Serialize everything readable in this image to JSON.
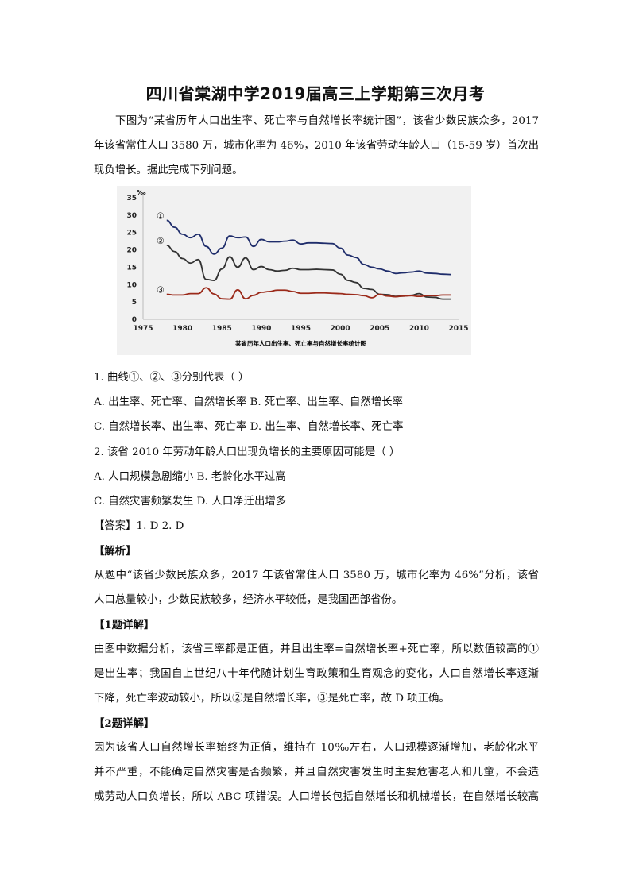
{
  "title": "四川省棠湖中学2019届高三上学期第三次月考",
  "intro": [
    "下图为“某省历年人口出生率、死亡率与自然增长率统计图”，该省少数民族众多，2017",
    "年该省常住人口 3580 万，城市化率为 46%，2010 年该省劳动年龄人口（15-59 岁）首次出",
    "现负增长。据此完成下列问题。"
  ],
  "q1": {
    "stem": "1. 曲线①、②、③分别代表（     ）",
    "options": [
      "A. 出生率、死亡率、自然增长率      B. 死亡率、出生率、自然增长率",
      "C. 自然增长率、出生率、死亡率      D. 出生率、自然增长率、死亡率"
    ]
  },
  "q2": {
    "stem": "2. 该省 2010 年劳动年龄人口出现负增长的主要原因可能是（     ）",
    "options": [
      "A. 人口规模急剧缩小      B. 老龄化水平过高",
      "C. 自然灾害频繁发生      D. 人口净迁出增多"
    ]
  },
  "answer": "【答案】1. D     2. D",
  "analysis_heading": "【解析】",
  "analysis": [
    "从题中“该省少数民族众多，2017 年该省常住人口 3580 万，城市化率为 46%”分析，该省",
    "人口总量较小，少数民族较多，经济水平较低，是我国西部省份。"
  ],
  "d1_heading": "【1题详解】",
  "d1": [
    "由图中数据分析，该省三率都是正值，并且出生率=自然增长率+死亡率，所以数值较高的①",
    "是出生率；我国自上世纪八十年代随计划生育政策和生育观念的变化，人口自然增长率逐渐",
    "下降，死亡率波动较小，所以②是自然增长率，③是死亡率，故 D 项正确。"
  ],
  "d2_heading": "【2题详解】",
  "d2": [
    "因为该省人口自然增长率始终为正值，维持在 10‰左右，人口规模逐渐增加，老龄化水平",
    "并不严重，不能确定自然灾害是否频繁，并且自然灾害发生时主要危害老人和儿童，不会造",
    "成劳动人口负增长，所以 ABC 项错误。人口增长包括自然增长和机械增长，在自然增长较高"
  ],
  "chart_data": {
    "type": "line",
    "title": "某省历年人口出生率、死亡率与自然增长率统计图",
    "ylabel": "‰",
    "xlim": [
      1975,
      2015
    ],
    "ylim": [
      0,
      35
    ],
    "xticks": [
      "1975",
      "1980",
      "1985",
      "1990",
      "1995",
      "2000",
      "2005",
      "2010",
      "2015"
    ],
    "yticks": [
      "0",
      "5",
      "10",
      "15",
      "20",
      "25",
      "30",
      "35"
    ],
    "grid": false,
    "x": [
      1978,
      1979,
      1980,
      1981,
      1982,
      1983,
      1984,
      1985,
      1986,
      1987,
      1988,
      1989,
      1990,
      1991,
      1992,
      1993,
      1994,
      1995,
      1996,
      1997,
      1998,
      1999,
      2000,
      2001,
      2002,
      2003,
      2004,
      2005,
      2006,
      2007,
      2008,
      2009,
      2010,
      2011,
      2012,
      2013,
      2014
    ],
    "series": [
      {
        "name": "①",
        "color": "#1f2d6b",
        "values": [
          28.5,
          26.5,
          24.5,
          23.5,
          24.5,
          21,
          18.8,
          20.5,
          24,
          23.5,
          23.7,
          21,
          23,
          22.3,
          22.3,
          22.5,
          22.8,
          21.7,
          22,
          22,
          21.9,
          21.8,
          20.5,
          18.5,
          17.8,
          15.8,
          15,
          14.5,
          13.9,
          13.2,
          13.4,
          13.6,
          13.9,
          13.3,
          13.2,
          13,
          12.9
        ]
      },
      {
        "name": "②",
        "color": "#333333",
        "values": [
          21.3,
          19.5,
          17.5,
          16.2,
          17.2,
          11.5,
          11.2,
          14.5,
          18,
          15,
          17.7,
          14.3,
          15.2,
          14.3,
          13.9,
          14.1,
          14.7,
          14.3,
          14.3,
          14.4,
          14.3,
          14.2,
          13,
          11.2,
          10.6,
          8.9,
          8.6,
          7.2,
          7.1,
          6.6,
          6.7,
          6.9,
          7.4,
          6.4,
          6.3,
          5.8,
          5.8
        ]
      },
      {
        "name": "③",
        "color": "#9b2a1a",
        "values": [
          7.2,
          7,
          7,
          7.4,
          7.4,
          9.1,
          7.3,
          5.9,
          5.8,
          8.5,
          5.9,
          6.9,
          7.8,
          8,
          8.4,
          8.4,
          8,
          7.5,
          7.5,
          7.6,
          7.6,
          7.5,
          7.4,
          7.2,
          7.1,
          6.8,
          6.2,
          7.2,
          6.7,
          6.5,
          6.7,
          6.8,
          6.6,
          6.8,
          6.8,
          7,
          7
        ]
      }
    ]
  }
}
